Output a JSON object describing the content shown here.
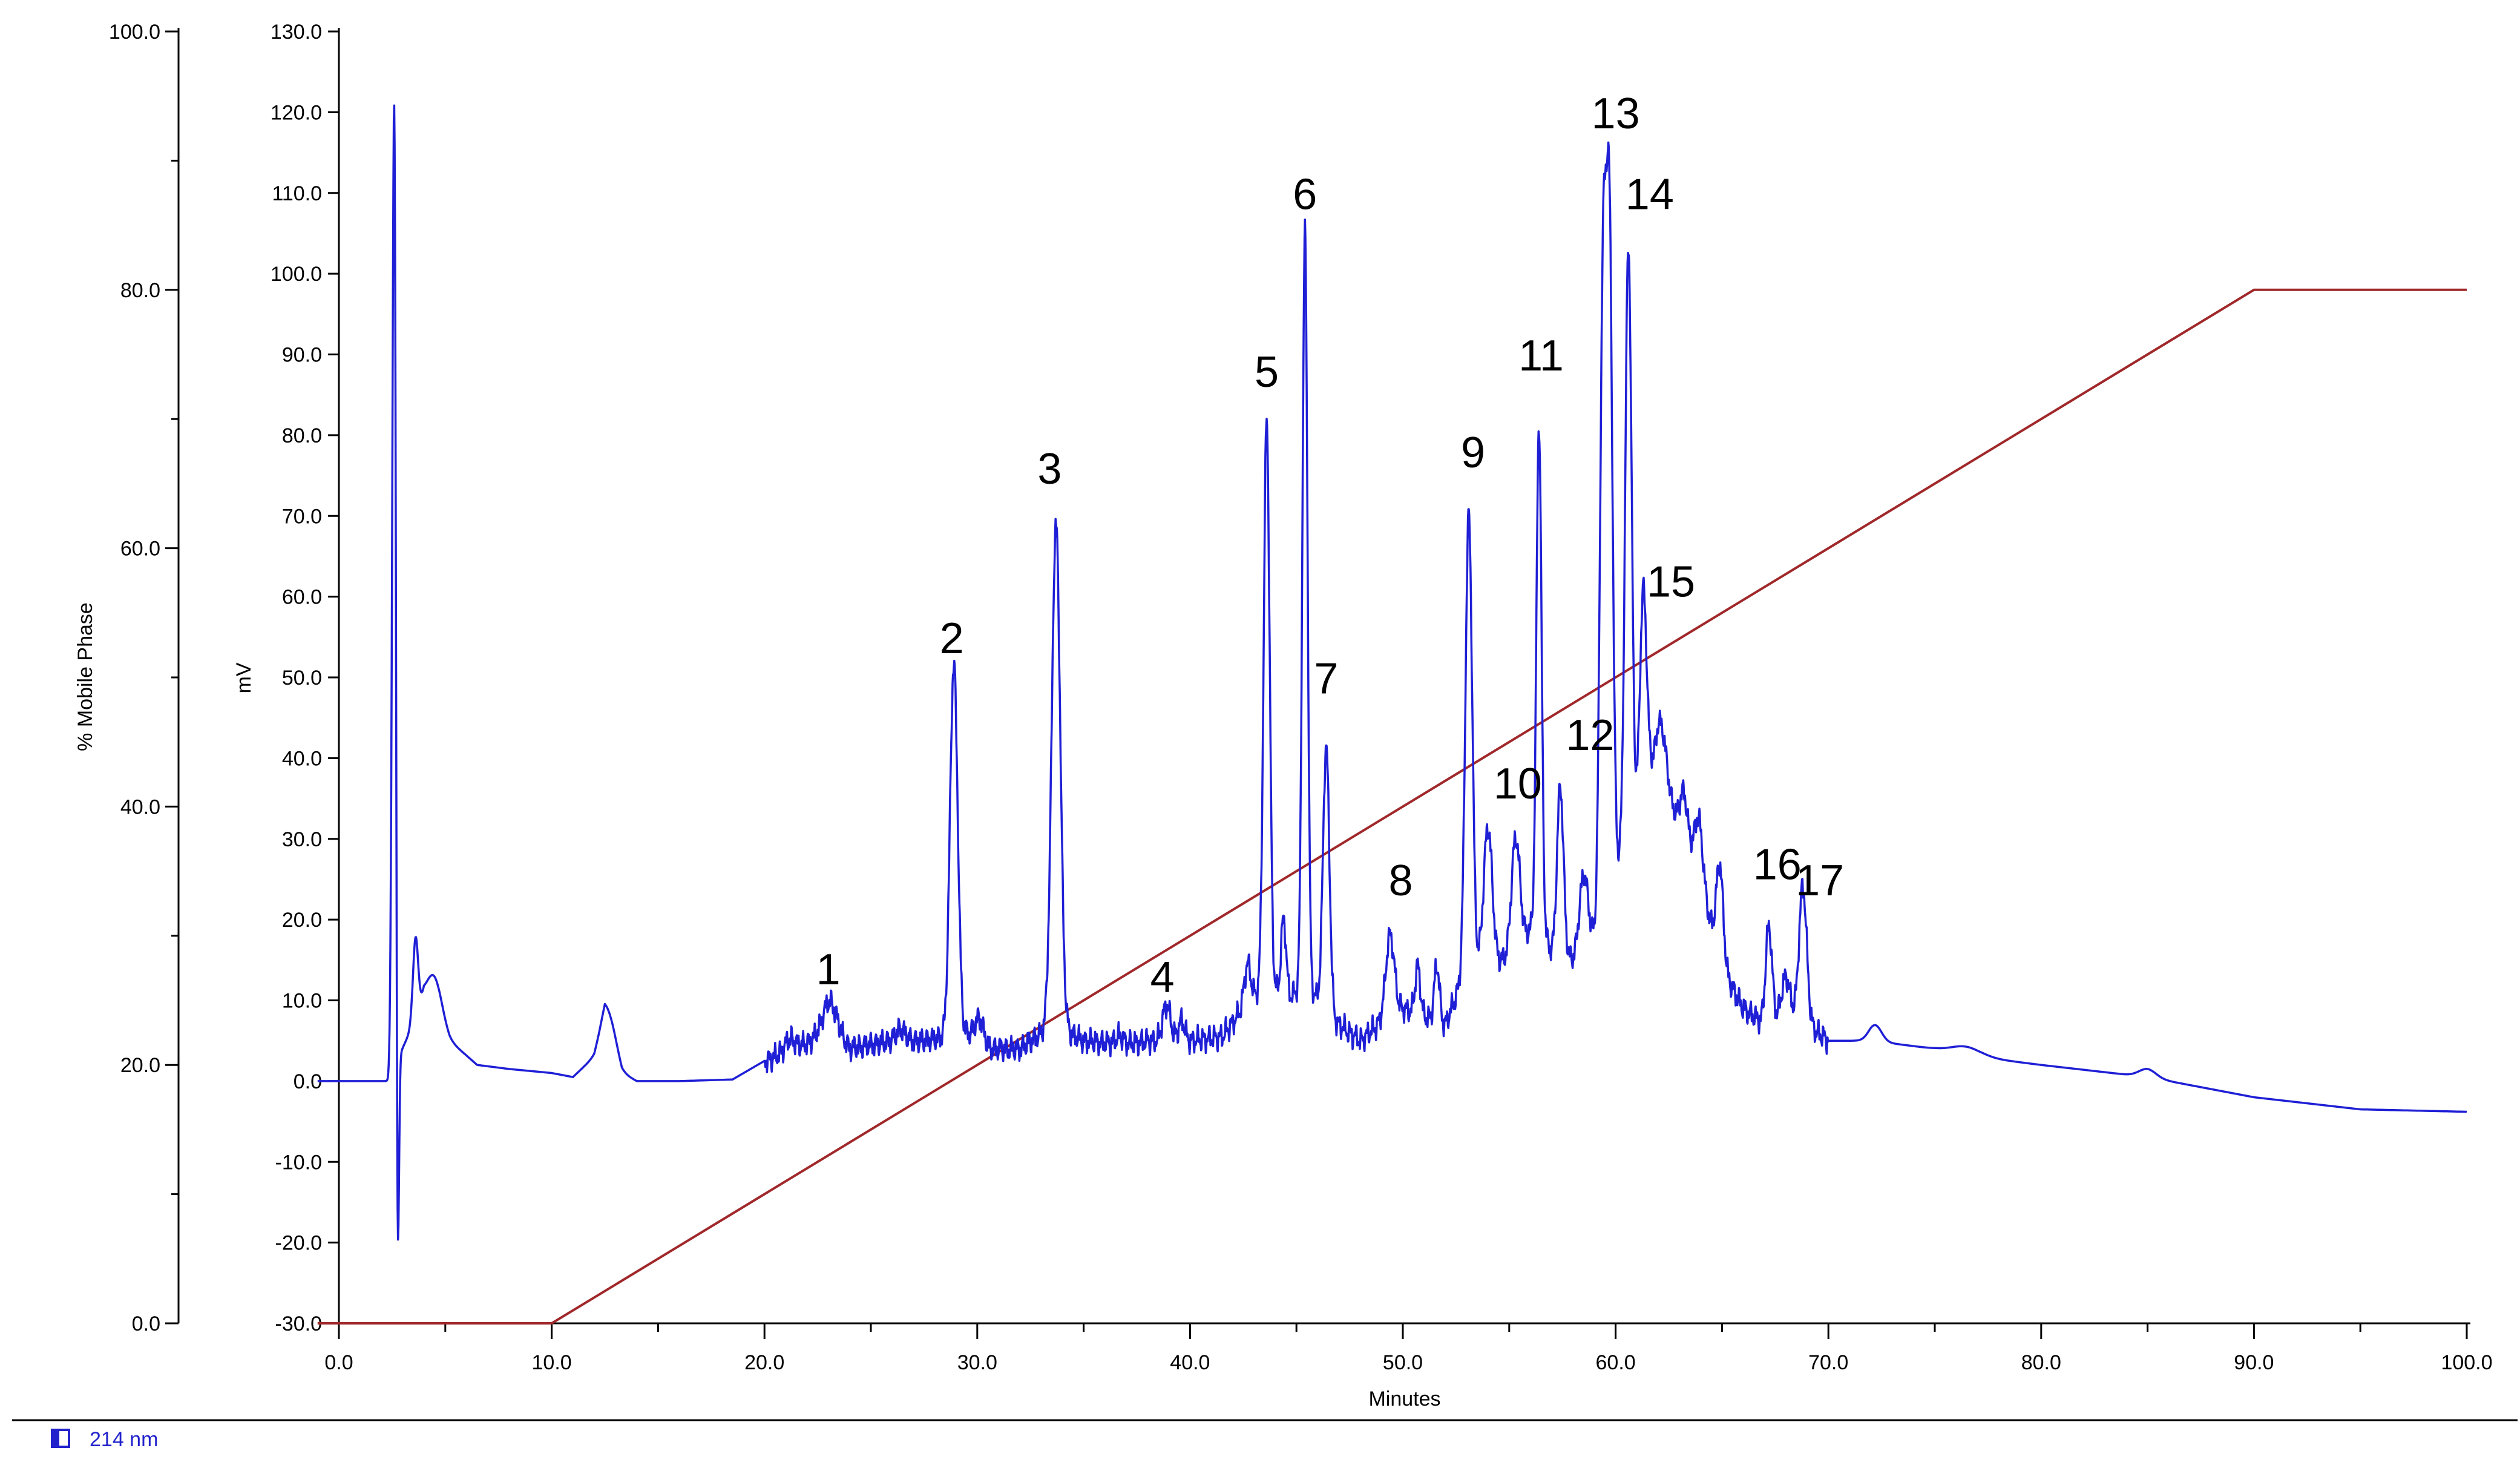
{
  "chart_data": {
    "type": "line",
    "xlabel": "Minutes",
    "ylabel_left": "% Mobile Phase",
    "ylabel_right": "mV",
    "x_range": [
      0,
      100
    ],
    "y_mobile_range": [
      0,
      100
    ],
    "y_mv_range": [
      -30,
      130
    ],
    "x_ticks": [
      "0.0",
      "10.0",
      "20.0",
      "30.0",
      "40.0",
      "50.0",
      "60.0",
      "70.0",
      "80.0",
      "90.0",
      "100.0"
    ],
    "y_mobile_ticks": [
      "0.0",
      "20.0",
      "40.0",
      "60.0",
      "80.0",
      "100.0"
    ],
    "y_mv_ticks": [
      "-30.0",
      "-20.0",
      "-10.0",
      "0.0",
      "10.0",
      "20.0",
      "30.0",
      "40.0",
      "50.0",
      "60.0",
      "70.0",
      "80.0",
      "90.0",
      "100.0",
      "110.0",
      "120.0",
      "130.0"
    ],
    "grid": false,
    "legend": {
      "position": "bottom-left",
      "entries": [
        "214 nm"
      ]
    },
    "colors": {
      "chromatogram": "#1f1fd6",
      "gradient": "#a0282a"
    },
    "series": [
      {
        "axis": "mobile_phase",
        "x": [
          -1,
          10,
          90,
          100
        ],
        "y": [
          0,
          0,
          80,
          80
        ]
      },
      {
        "name": "214 nm",
        "axis": "mV",
        "baseline": [
          [
            -1,
            0
          ],
          [
            2.3,
            0
          ],
          [
            4,
            10
          ],
          [
            5.2,
            5
          ],
          [
            6.5,
            2
          ],
          [
            8,
            1.5
          ],
          [
            10,
            1
          ],
          [
            11,
            0.5
          ],
          [
            12,
            3
          ],
          [
            12.5,
            7
          ],
          [
            13.3,
            1
          ],
          [
            14,
            0
          ],
          [
            16,
            0
          ],
          [
            18.5,
            0.2
          ],
          [
            20,
            2.5
          ],
          [
            21.5,
            4
          ],
          [
            23,
            6
          ],
          [
            24,
            4
          ],
          [
            26,
            5
          ],
          [
            27.5,
            5
          ],
          [
            29.5,
            6
          ],
          [
            30.5,
            4
          ],
          [
            32,
            4
          ],
          [
            33.6,
            7
          ],
          [
            35,
            5
          ],
          [
            37,
            4.5
          ],
          [
            38,
            5
          ],
          [
            40,
            5
          ],
          [
            41.5,
            5.5
          ],
          [
            42.5,
            9
          ],
          [
            43.6,
            12
          ],
          [
            44.5,
            10
          ],
          [
            45.5,
            12
          ],
          [
            46.5,
            8
          ],
          [
            48,
            5
          ],
          [
            49.3,
            8
          ],
          [
            50,
            9
          ],
          [
            52,
            7
          ],
          [
            53,
            14
          ],
          [
            55,
            15
          ],
          [
            56.3,
            20
          ],
          [
            57,
            16
          ],
          [
            58,
            15
          ],
          [
            59,
            18
          ],
          [
            60,
            26
          ],
          [
            61,
            32
          ],
          [
            62,
            42
          ],
          [
            63,
            30
          ],
          [
            64,
            24
          ],
          [
            65,
            14
          ],
          [
            66,
            9
          ],
          [
            67,
            7
          ],
          [
            68,
            8
          ],
          [
            69,
            7
          ],
          [
            70,
            5
          ],
          [
            72,
            5
          ],
          [
            75,
            4
          ],
          [
            77,
            3
          ],
          [
            80,
            2
          ],
          [
            85,
            0.5
          ],
          [
            90,
            -2
          ],
          [
            95,
            -3.5
          ],
          [
            100,
            -3.8
          ]
        ],
        "peaks": [
          [
            2.6,
            121,
            0.09
          ],
          [
            2.75,
            -44,
            0.06
          ],
          [
            3.6,
            10,
            0.12
          ],
          [
            4.5,
            5,
            0.35
          ],
          [
            12.7,
            3,
            0.35
          ],
          [
            21.2,
            1.5,
            0.25
          ],
          [
            23.1,
            4,
            0.35
          ],
          [
            26.4,
            1.5,
            0.2
          ],
          [
            28.9,
            46,
            0.18
          ],
          [
            30.1,
            3,
            0.2
          ],
          [
            33.7,
            62,
            0.2
          ],
          [
            36.7,
            1,
            0.2
          ],
          [
            38.9,
            4.5,
            0.18
          ],
          [
            39.6,
            2.5,
            0.15
          ],
          [
            42.7,
            5,
            0.15
          ],
          [
            43.6,
            70,
            0.14
          ],
          [
            44.4,
            10,
            0.12
          ],
          [
            45.4,
            93,
            0.12
          ],
          [
            46.4,
            33,
            0.15
          ],
          [
            49.4,
            10,
            0.2
          ],
          [
            50.7,
            6,
            0.12
          ],
          [
            51.6,
            7,
            0.12
          ],
          [
            53.1,
            56,
            0.16
          ],
          [
            54,
            17,
            0.2
          ],
          [
            55.3,
            14,
            0.2
          ],
          [
            56.4,
            62,
            0.12
          ],
          [
            57.4,
            21,
            0.15
          ],
          [
            58.5,
            9,
            0.2
          ],
          [
            59.4,
            73,
            0.14
          ],
          [
            59.7,
            82,
            0.15
          ],
          [
            60.6,
            74,
            0.15
          ],
          [
            61.3,
            26,
            0.16
          ],
          [
            62.2,
            4,
            0.2
          ],
          [
            63.2,
            7,
            0.2
          ],
          [
            63.9,
            8,
            0.2
          ],
          [
            64.9,
            12,
            0.16
          ],
          [
            67.2,
            12,
            0.15
          ],
          [
            68,
            5,
            0.2
          ],
          [
            68.8,
            17,
            0.18
          ],
          [
            72.2,
            2,
            0.3
          ],
          [
            76.5,
            1,
            0.7
          ],
          [
            85,
            1,
            0.4
          ]
        ]
      }
    ],
    "peak_labels": [
      {
        "text": "1",
        "x": 23.0,
        "y_mv": 12
      },
      {
        "text": "2",
        "x": 28.8,
        "y_mv": 53
      },
      {
        "text": "3",
        "x": 33.4,
        "y_mv": 74
      },
      {
        "text": "4",
        "x": 38.7,
        "y_mv": 11
      },
      {
        "text": "5",
        "x": 43.6,
        "y_mv": 86
      },
      {
        "text": "6",
        "x": 45.4,
        "y_mv": 108
      },
      {
        "text": "7",
        "x": 46.4,
        "y_mv": 48
      },
      {
        "text": "8",
        "x": 49.9,
        "y_mv": 23
      },
      {
        "text": "9",
        "x": 53.3,
        "y_mv": 76
      },
      {
        "text": "10",
        "x": 55.4,
        "y_mv": 35
      },
      {
        "text": "11",
        "x": 56.5,
        "y_mv": 88
      },
      {
        "text": "12",
        "x": 58.8,
        "y_mv": 41
      },
      {
        "text": "13",
        "x": 60.0,
        "y_mv": 118
      },
      {
        "text": "14",
        "x": 61.6,
        "y_mv": 108
      },
      {
        "text": "15",
        "x": 62.6,
        "y_mv": 60
      },
      {
        "text": "16",
        "x": 67.6,
        "y_mv": 25
      },
      {
        "text": "17",
        "x": 69.6,
        "y_mv": 23
      }
    ]
  }
}
